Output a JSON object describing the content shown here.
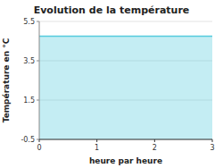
{
  "chart_data": {
    "type": "area",
    "title": "Evolution de la température",
    "xlabel": "heure par heure",
    "ylabel": "Température en °C",
    "x": [
      0,
      3
    ],
    "values": [
      4.75,
      4.75
    ],
    "color": "#55ccdd",
    "xlim": [
      0,
      3
    ],
    "ylim": [
      -0.5,
      5.5
    ],
    "xticks": [
      0,
      1,
      2,
      3
    ],
    "yticks": [
      -0.5,
      1.5,
      3.5,
      5.5
    ],
    "grid": true
  }
}
